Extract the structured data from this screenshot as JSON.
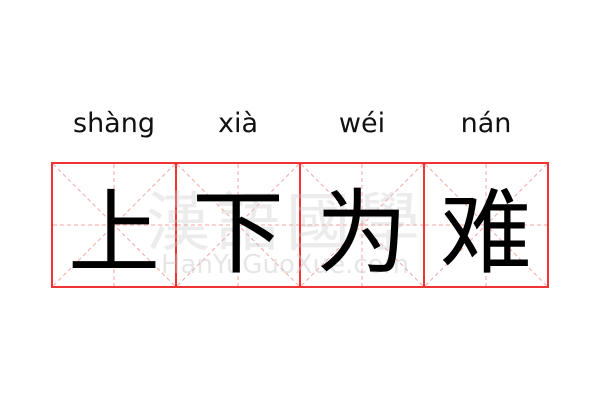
{
  "pinyin": [
    "shàng",
    "xià",
    "wéi",
    "nán"
  ],
  "characters": [
    "上",
    "下",
    "为",
    "难"
  ],
  "watermark": {
    "chinese": "漢語國學",
    "latin": "HanYuGuoXue.com"
  },
  "colors": {
    "grid_border": "#f03434",
    "guide_lines": "#f7a5a5",
    "text": "#000000"
  }
}
